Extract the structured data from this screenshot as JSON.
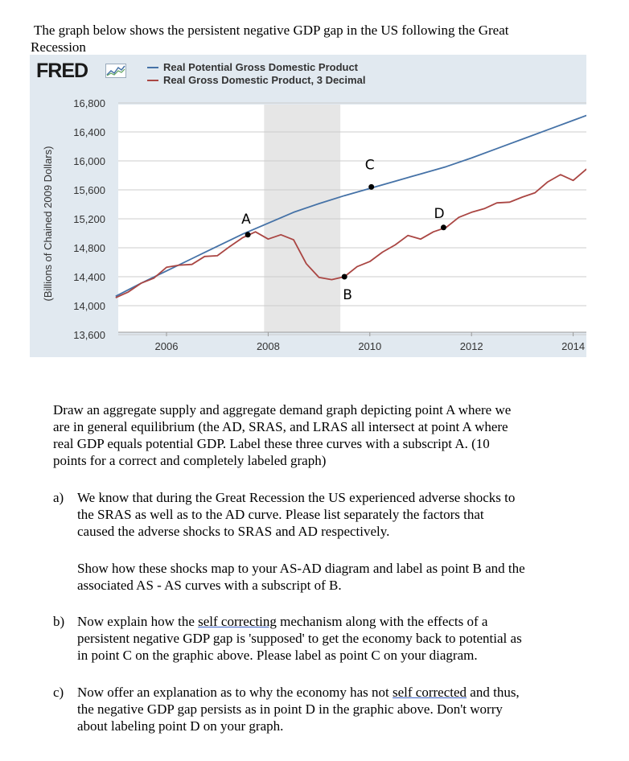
{
  "intro": {
    "line1": "The graph below shows the persistent negative GDP gap in the US following the Great",
    "line2": "Recession"
  },
  "fred": {
    "logo": "FRED",
    "icon": "fred-chart-icon"
  },
  "colors": {
    "potential": "#4572a7",
    "real": "#aa4643",
    "shade": "#e6e6e6",
    "background": "#e1e9f0",
    "grid": "#cccccc"
  },
  "chart_data": {
    "type": "line",
    "title": "",
    "ylabel": "(Billions of Chained 2009 Dollars)",
    "xlabel": "",
    "ylim": [
      13600,
      16800
    ],
    "xlim": [
      2005.0,
      2014.75
    ],
    "yticks": [
      "16,800",
      "16,400",
      "16,000",
      "15,600",
      "15,200",
      "14,800",
      "14,400",
      "14,000",
      "13,600"
    ],
    "yticks_values": [
      16800,
      16400,
      16000,
      15600,
      15200,
      14800,
      14400,
      14000,
      13600
    ],
    "xticks": [
      "2006",
      "2008",
      "2010",
      "2012",
      "2014"
    ],
    "xticks_values": [
      2006,
      2008,
      2010,
      2012,
      2014
    ],
    "recession_shading": [
      2007.92,
      2009.42
    ],
    "grid": "horizontal",
    "legend_position": "top",
    "series": [
      {
        "name": "Real Potential Gross Domestic Product",
        "color": "#4572a7",
        "x": [
          2005.0,
          2005.5,
          2006.0,
          2006.5,
          2007.0,
          2007.5,
          2008.0,
          2008.5,
          2009.0,
          2009.5,
          2010.0,
          2010.5,
          2011.0,
          2011.5,
          2012.0,
          2012.5,
          2013.0,
          2013.5,
          2014.0,
          2014.5,
          2014.75
        ],
        "values": [
          14130,
          14310,
          14480,
          14650,
          14820,
          14990,
          15140,
          15290,
          15410,
          15520,
          15620,
          15720,
          15820,
          15920,
          16040,
          16170,
          16300,
          16430,
          16560,
          16690,
          16760
        ]
      },
      {
        "name": "Real Gross Domestic Product, 3 Decimal",
        "color": "#aa4643",
        "x": [
          2005.0,
          2005.25,
          2005.5,
          2005.75,
          2006.0,
          2006.25,
          2006.5,
          2006.75,
          2007.0,
          2007.25,
          2007.5,
          2007.75,
          2008.0,
          2008.25,
          2008.5,
          2008.75,
          2009.0,
          2009.25,
          2009.5,
          2009.75,
          2010.0,
          2010.25,
          2010.5,
          2010.75,
          2011.0,
          2011.25,
          2011.5,
          2011.75,
          2012.0,
          2012.25,
          2012.5,
          2012.75,
          2013.0,
          2013.25,
          2013.5,
          2013.75,
          2014.0,
          2014.25,
          2014.5
        ],
        "values": [
          14110,
          14190,
          14310,
          14380,
          14530,
          14560,
          14570,
          14680,
          14690,
          14820,
          14940,
          15020,
          14920,
          14980,
          14910,
          14580,
          14390,
          14360,
          14400,
          14540,
          14610,
          14740,
          14840,
          14970,
          14920,
          15020,
          15080,
          15220,
          15290,
          15340,
          15420,
          15430,
          15500,
          15560,
          15710,
          15810,
          15730,
          15880,
          15990
        ]
      }
    ],
    "annotations": [
      {
        "label": "A",
        "x": 2007.6,
        "y": 14980
      },
      {
        "label": "B",
        "x": 2009.5,
        "y": 14400
      },
      {
        "label": "C",
        "x": 2010.03,
        "y": 15640
      },
      {
        "label": "D",
        "x": 2011.45,
        "y": 15080
      }
    ]
  },
  "paragraph_main": {
    "lines": [
      "Draw an aggregate supply and aggregate demand graph depicting point A where we",
      "are in general equilibrium (the AD, SRAS, and LRAS all intersect at point A where",
      "real GDP equals potential GDP. Label these three curves with a subscript A. (10",
      "points for a correct and completely labeled graph)"
    ]
  },
  "q_a": {
    "marker": "a)",
    "lines": [
      "We know that during the Great Recession the US experienced adverse shocks to",
      "the SRAS as well as to the AD curve.  Please list separately the factors that",
      "caused the adverse shocks to SRAS and AD respectively."
    ],
    "show_lines": [
      "Show how these shocks map to your AS-AD diagram and label as point B and the",
      "associated AS - AS curves with a subscript of B."
    ]
  },
  "q_b": {
    "marker": "b)",
    "line1_pre": "Now explain how the ",
    "line1_link": "self correcting",
    "line1_post": " mechanism along with the effects of a",
    "line2": "persistent negative GDP gap is 'supposed' to get the economy back to potential as",
    "line3": "in point C on the graphic above. Please label as point C on your diagram."
  },
  "q_c": {
    "marker": "c)",
    "line1_pre": "Now offer an explanation as to why the economy has not ",
    "line1_link": "self corrected",
    "line1_post": " and thus,",
    "line2": "the negative GDP gap persists as in point D in the graphic above.  Don't worry",
    "line3": "about labeling point D on your graph."
  }
}
